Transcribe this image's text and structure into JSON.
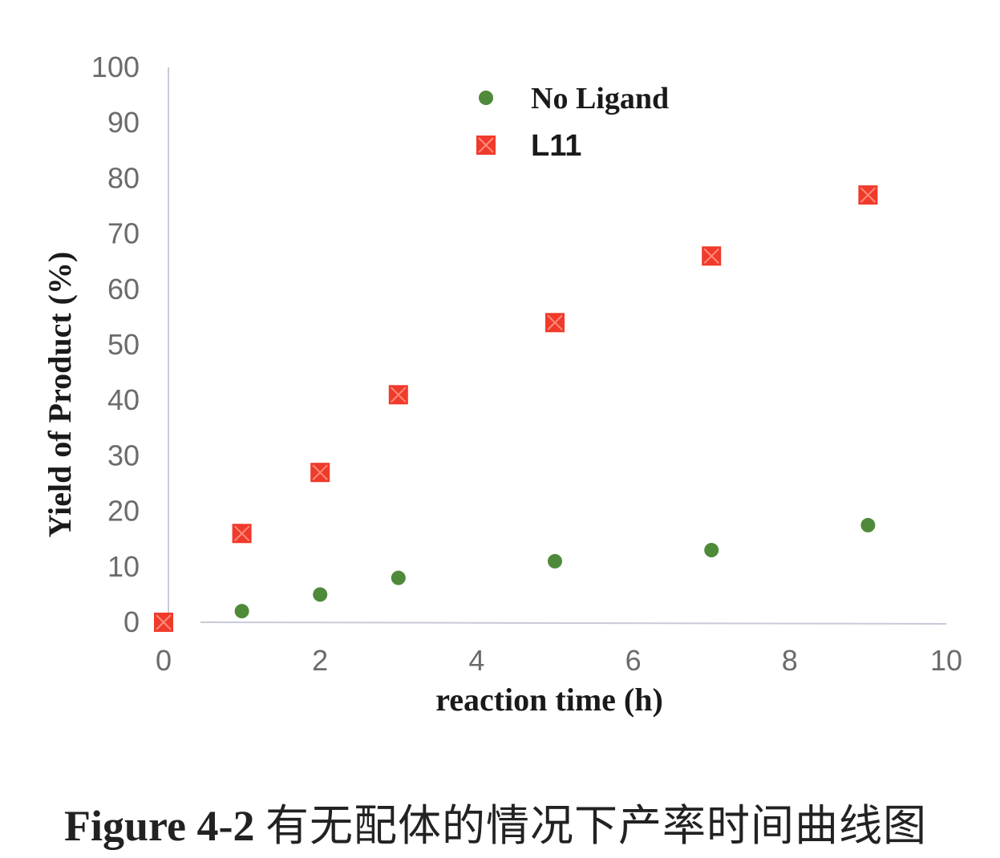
{
  "chart_data": {
    "type": "scatter",
    "xlabel": "reaction time (h)",
    "ylabel": "Yield of Product (%)",
    "xlim": [
      0,
      10
    ],
    "ylim": [
      0,
      100
    ],
    "x_ticks": [
      "0",
      "2",
      "4",
      "6",
      "8",
      "10"
    ],
    "y_ticks": [
      "0",
      "10",
      "20",
      "30",
      "40",
      "50",
      "60",
      "70",
      "80",
      "90",
      "100"
    ],
    "grid": false,
    "legend_position": "top-center",
    "series": [
      {
        "name": "No Ligand",
        "marker": "circle",
        "color": "#4e8a3a",
        "x": [
          1,
          2,
          3,
          5,
          7,
          9
        ],
        "y": [
          2,
          5,
          8,
          11,
          13,
          17.5
        ]
      },
      {
        "name": "L11",
        "marker": "square-x",
        "color": "#f03a2b",
        "x": [
          0,
          1,
          2,
          3,
          5,
          7,
          9
        ],
        "y": [
          0,
          16,
          27,
          41,
          54,
          66,
          77
        ]
      }
    ]
  },
  "caption": {
    "label": "Figure 4-2",
    "text": "有无配体的情况下产率时间曲线图"
  }
}
